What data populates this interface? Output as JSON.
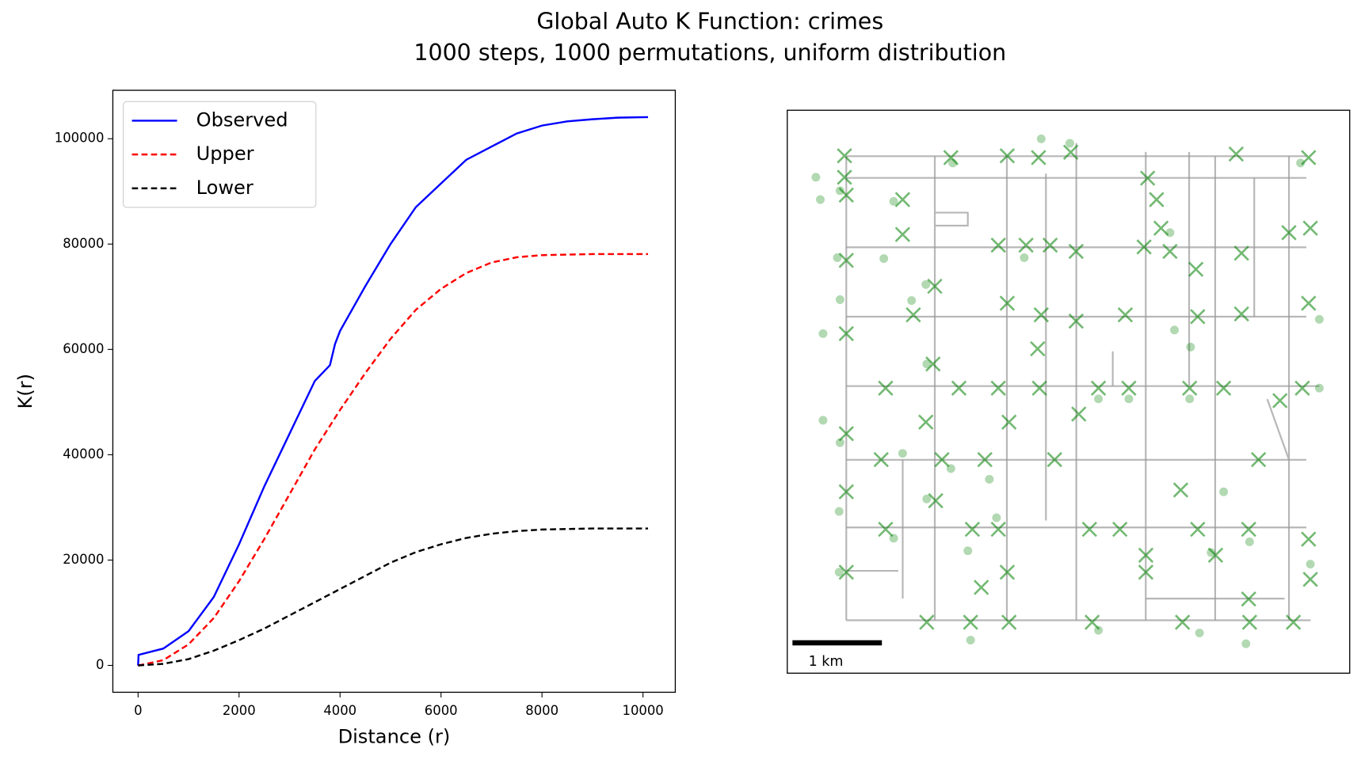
{
  "chart_data": [
    {
      "type": "line",
      "title": "Global Auto K Function: crimes",
      "subtitle": "1000 steps, 1000 permutations, uniform distribution",
      "x_label": "Distance (r)",
      "y_label": "K(r)",
      "x": [
        0,
        10,
        500,
        1000,
        1500,
        2000,
        2500,
        3000,
        3500,
        3800,
        3900,
        4000,
        4500,
        5000,
        5500,
        6000,
        6500,
        7000,
        7500,
        8000,
        8500,
        9000,
        9500,
        10100
      ],
      "series": [
        {
          "name": "Observed",
          "color": "#0000ff",
          "dash": false,
          "values": [
            0,
            2000,
            3200,
            6500,
            13000,
            23000,
            34000,
            44000,
            54000,
            57000,
            61000,
            63500,
            72000,
            80000,
            87000,
            91500,
            96000,
            98500,
            101000,
            102500,
            103300,
            103700,
            104000,
            104100
          ]
        },
        {
          "name": "Upper",
          "color": "#ff0000",
          "dash": true,
          "values": [
            0,
            0,
            1000,
            4000,
            9000,
            16000,
            24000,
            32500,
            41000,
            45500,
            47000,
            48500,
            55500,
            62000,
            67500,
            71500,
            74500,
            76500,
            77500,
            77900,
            78000,
            78100,
            78100,
            78100
          ]
        },
        {
          "name": "Lower",
          "color": "#000000",
          "dash": true,
          "values": [
            0,
            0,
            300,
            1200,
            2800,
            4800,
            7000,
            9500,
            12000,
            13500,
            14000,
            14500,
            17000,
            19500,
            21500,
            23000,
            24200,
            25000,
            25500,
            25800,
            25900,
            26000,
            26000,
            26000
          ]
        }
      ],
      "xlim": [
        -500,
        10640
      ],
      "ylim": [
        -5100,
        109200
      ],
      "xticks": [
        0,
        2000,
        4000,
        6000,
        8000,
        10000
      ],
      "yticks": [
        0,
        20000,
        40000,
        60000,
        80000,
        100000
      ],
      "legend": "upper left"
    },
    {
      "type": "map",
      "xlim": [
        0,
        6.29
      ],
      "ylim": [
        0,
        6.3
      ],
      "scale_bar": {
        "value": 1,
        "label": "1 km"
      },
      "points": [
        {
          "marker": "x",
          "color": "#008000",
          "x": [
            0.64,
            0.64,
            0.66,
            1.29,
            1.83,
            2.46,
            2.81,
            3.17,
            4.03,
            4.13,
            4.18,
            5.02,
            5.83,
            5.85,
            1.29,
            2.36,
            2.67,
            2.94,
            3.23,
            3.99,
            4.28,
            5.08,
            5.61,
            4.57,
            0.66,
            1.65,
            2.46,
            1.41,
            2.84,
            3.23,
            3.78,
            4.59,
            5.08,
            5.83,
            0.66,
            2.8,
            4.5,
            1.1,
            1.63,
            1.92,
            2.36,
            2.82,
            3.48,
            3.82,
            4.88,
            5.76,
            0.66,
            1.55,
            2.48,
            3.26,
            5.51,
            1.05,
            1.73,
            2.21,
            2.99,
            5.27,
            0.66,
            1.66,
            4.4,
            1.1,
            2.07,
            2.36,
            3.38,
            3.72,
            4.59,
            5.16,
            5.83,
            4.01,
            4.01,
            4.79,
            0.66,
            2.46,
            2.17,
            5.16,
            5.85,
            1.56,
            2.05,
            2.48,
            3.41,
            4.42,
            5.17,
            5.66
          ],
          "y": [
            5.79,
            5.55,
            5.35,
            5.3,
            5.77,
            5.79,
            5.77,
            5.83,
            5.54,
            5.3,
            4.98,
            5.81,
            5.77,
            4.98,
            4.91,
            4.79,
            4.79,
            4.79,
            4.72,
            4.77,
            4.72,
            4.7,
            4.93,
            4.52,
            4.62,
            4.33,
            4.14,
            4.01,
            4.01,
            3.94,
            4.01,
            3.99,
            4.02,
            4.14,
            3.8,
            3.63,
            3.19,
            3.19,
            3.46,
            3.19,
            3.19,
            3.19,
            3.19,
            3.19,
            3.19,
            3.19,
            2.68,
            2.81,
            2.81,
            2.9,
            3.05,
            2.39,
            2.39,
            2.39,
            2.39,
            2.39,
            2.03,
            1.93,
            2.05,
            1.61,
            1.61,
            1.61,
            1.61,
            1.61,
            1.61,
            1.61,
            1.5,
            1.32,
            1.13,
            1.32,
            1.13,
            1.13,
            0.96,
            0.83,
            1.05,
            0.57,
            0.57,
            0.57,
            0.57,
            0.57,
            0.57,
            0.57
          ]
        },
        {
          "marker": "o",
          "color": "#008000",
          "x": [
            0.32,
            0.37,
            0.59,
            1.19,
            1.85,
            2.84,
            3.16,
            1.08,
            2.65,
            4.28,
            5.74,
            0.56,
            0.59,
            0.4,
            1.55,
            1.39,
            4.33,
            4.51,
            1.56,
            3.48,
            3.82,
            4.5,
            0.4,
            0.59,
            1.29,
            2.26,
            1.83,
            1.56,
            0.58,
            1.19,
            2.02,
            2.34,
            5.17,
            4.74,
            4.88,
            5.85,
            0.58,
            2.05,
            5.13,
            4.61,
            3.48,
            5.95,
            5.95
          ],
          "y": [
            5.55,
            5.3,
            5.4,
            5.28,
            5.71,
            5.98,
            5.93,
            4.64,
            4.65,
            4.93,
            5.71,
            4.65,
            4.18,
            3.8,
            4.35,
            4.17,
            3.84,
            3.65,
            3.46,
            3.07,
            3.07,
            3.07,
            2.83,
            2.58,
            2.46,
            2.17,
            2.29,
            1.95,
            1.81,
            1.51,
            1.37,
            1.74,
            1.47,
            1.35,
            2.03,
            1.22,
            1.13,
            0.37,
            0.33,
            0.45,
            0.48,
            3.96,
            3.19
          ]
        }
      ]
    }
  ]
}
